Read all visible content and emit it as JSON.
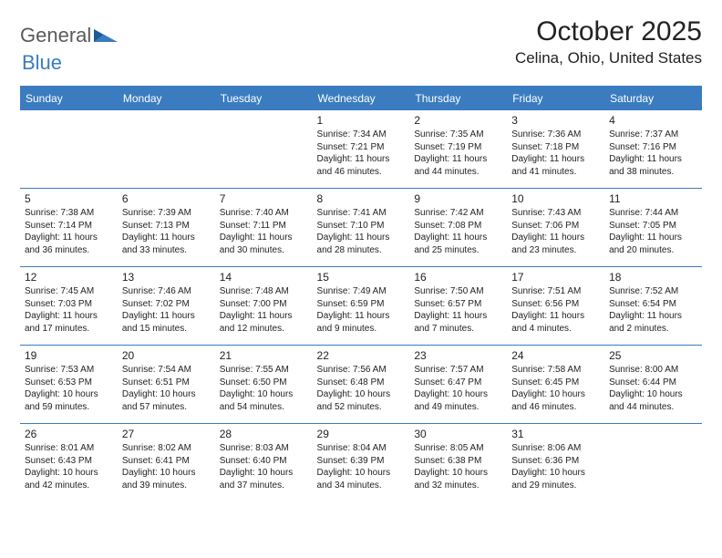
{
  "logo": {
    "part1": "General",
    "part2": "Blue"
  },
  "title": "October 2025",
  "location": "Celina, Ohio, United States",
  "colors": {
    "header_bg": "#3a7cbf",
    "header_text": "#ffffff",
    "border": "#3a7cbf",
    "body_text": "#222222",
    "logo_gray": "#5a5a5a",
    "logo_blue": "#3a7cbf",
    "page_bg": "#ffffff"
  },
  "fonts": {
    "title_size": 30,
    "location_size": 17,
    "day_header_size": 12,
    "cell_size": 10,
    "daynum_size": 12
  },
  "day_headers": [
    "Sunday",
    "Monday",
    "Tuesday",
    "Wednesday",
    "Thursday",
    "Friday",
    "Saturday"
  ],
  "weeks": [
    [
      null,
      null,
      null,
      {
        "n": "1",
        "r": "Sunrise: 7:34 AM",
        "s": "Sunset: 7:21 PM",
        "d": "Daylight: 11 hours and 46 minutes."
      },
      {
        "n": "2",
        "r": "Sunrise: 7:35 AM",
        "s": "Sunset: 7:19 PM",
        "d": "Daylight: 11 hours and 44 minutes."
      },
      {
        "n": "3",
        "r": "Sunrise: 7:36 AM",
        "s": "Sunset: 7:18 PM",
        "d": "Daylight: 11 hours and 41 minutes."
      },
      {
        "n": "4",
        "r": "Sunrise: 7:37 AM",
        "s": "Sunset: 7:16 PM",
        "d": "Daylight: 11 hours and 38 minutes."
      }
    ],
    [
      {
        "n": "5",
        "r": "Sunrise: 7:38 AM",
        "s": "Sunset: 7:14 PM",
        "d": "Daylight: 11 hours and 36 minutes."
      },
      {
        "n": "6",
        "r": "Sunrise: 7:39 AM",
        "s": "Sunset: 7:13 PM",
        "d": "Daylight: 11 hours and 33 minutes."
      },
      {
        "n": "7",
        "r": "Sunrise: 7:40 AM",
        "s": "Sunset: 7:11 PM",
        "d": "Daylight: 11 hours and 30 minutes."
      },
      {
        "n": "8",
        "r": "Sunrise: 7:41 AM",
        "s": "Sunset: 7:10 PM",
        "d": "Daylight: 11 hours and 28 minutes."
      },
      {
        "n": "9",
        "r": "Sunrise: 7:42 AM",
        "s": "Sunset: 7:08 PM",
        "d": "Daylight: 11 hours and 25 minutes."
      },
      {
        "n": "10",
        "r": "Sunrise: 7:43 AM",
        "s": "Sunset: 7:06 PM",
        "d": "Daylight: 11 hours and 23 minutes."
      },
      {
        "n": "11",
        "r": "Sunrise: 7:44 AM",
        "s": "Sunset: 7:05 PM",
        "d": "Daylight: 11 hours and 20 minutes."
      }
    ],
    [
      {
        "n": "12",
        "r": "Sunrise: 7:45 AM",
        "s": "Sunset: 7:03 PM",
        "d": "Daylight: 11 hours and 17 minutes."
      },
      {
        "n": "13",
        "r": "Sunrise: 7:46 AM",
        "s": "Sunset: 7:02 PM",
        "d": "Daylight: 11 hours and 15 minutes."
      },
      {
        "n": "14",
        "r": "Sunrise: 7:48 AM",
        "s": "Sunset: 7:00 PM",
        "d": "Daylight: 11 hours and 12 minutes."
      },
      {
        "n": "15",
        "r": "Sunrise: 7:49 AM",
        "s": "Sunset: 6:59 PM",
        "d": "Daylight: 11 hours and 9 minutes."
      },
      {
        "n": "16",
        "r": "Sunrise: 7:50 AM",
        "s": "Sunset: 6:57 PM",
        "d": "Daylight: 11 hours and 7 minutes."
      },
      {
        "n": "17",
        "r": "Sunrise: 7:51 AM",
        "s": "Sunset: 6:56 PM",
        "d": "Daylight: 11 hours and 4 minutes."
      },
      {
        "n": "18",
        "r": "Sunrise: 7:52 AM",
        "s": "Sunset: 6:54 PM",
        "d": "Daylight: 11 hours and 2 minutes."
      }
    ],
    [
      {
        "n": "19",
        "r": "Sunrise: 7:53 AM",
        "s": "Sunset: 6:53 PM",
        "d": "Daylight: 10 hours and 59 minutes."
      },
      {
        "n": "20",
        "r": "Sunrise: 7:54 AM",
        "s": "Sunset: 6:51 PM",
        "d": "Daylight: 10 hours and 57 minutes."
      },
      {
        "n": "21",
        "r": "Sunrise: 7:55 AM",
        "s": "Sunset: 6:50 PM",
        "d": "Daylight: 10 hours and 54 minutes."
      },
      {
        "n": "22",
        "r": "Sunrise: 7:56 AM",
        "s": "Sunset: 6:48 PM",
        "d": "Daylight: 10 hours and 52 minutes."
      },
      {
        "n": "23",
        "r": "Sunrise: 7:57 AM",
        "s": "Sunset: 6:47 PM",
        "d": "Daylight: 10 hours and 49 minutes."
      },
      {
        "n": "24",
        "r": "Sunrise: 7:58 AM",
        "s": "Sunset: 6:45 PM",
        "d": "Daylight: 10 hours and 46 minutes."
      },
      {
        "n": "25",
        "r": "Sunrise: 8:00 AM",
        "s": "Sunset: 6:44 PM",
        "d": "Daylight: 10 hours and 44 minutes."
      }
    ],
    [
      {
        "n": "26",
        "r": "Sunrise: 8:01 AM",
        "s": "Sunset: 6:43 PM",
        "d": "Daylight: 10 hours and 42 minutes."
      },
      {
        "n": "27",
        "r": "Sunrise: 8:02 AM",
        "s": "Sunset: 6:41 PM",
        "d": "Daylight: 10 hours and 39 minutes."
      },
      {
        "n": "28",
        "r": "Sunrise: 8:03 AM",
        "s": "Sunset: 6:40 PM",
        "d": "Daylight: 10 hours and 37 minutes."
      },
      {
        "n": "29",
        "r": "Sunrise: 8:04 AM",
        "s": "Sunset: 6:39 PM",
        "d": "Daylight: 10 hours and 34 minutes."
      },
      {
        "n": "30",
        "r": "Sunrise: 8:05 AM",
        "s": "Sunset: 6:38 PM",
        "d": "Daylight: 10 hours and 32 minutes."
      },
      {
        "n": "31",
        "r": "Sunrise: 8:06 AM",
        "s": "Sunset: 6:36 PM",
        "d": "Daylight: 10 hours and 29 minutes."
      },
      null
    ]
  ]
}
